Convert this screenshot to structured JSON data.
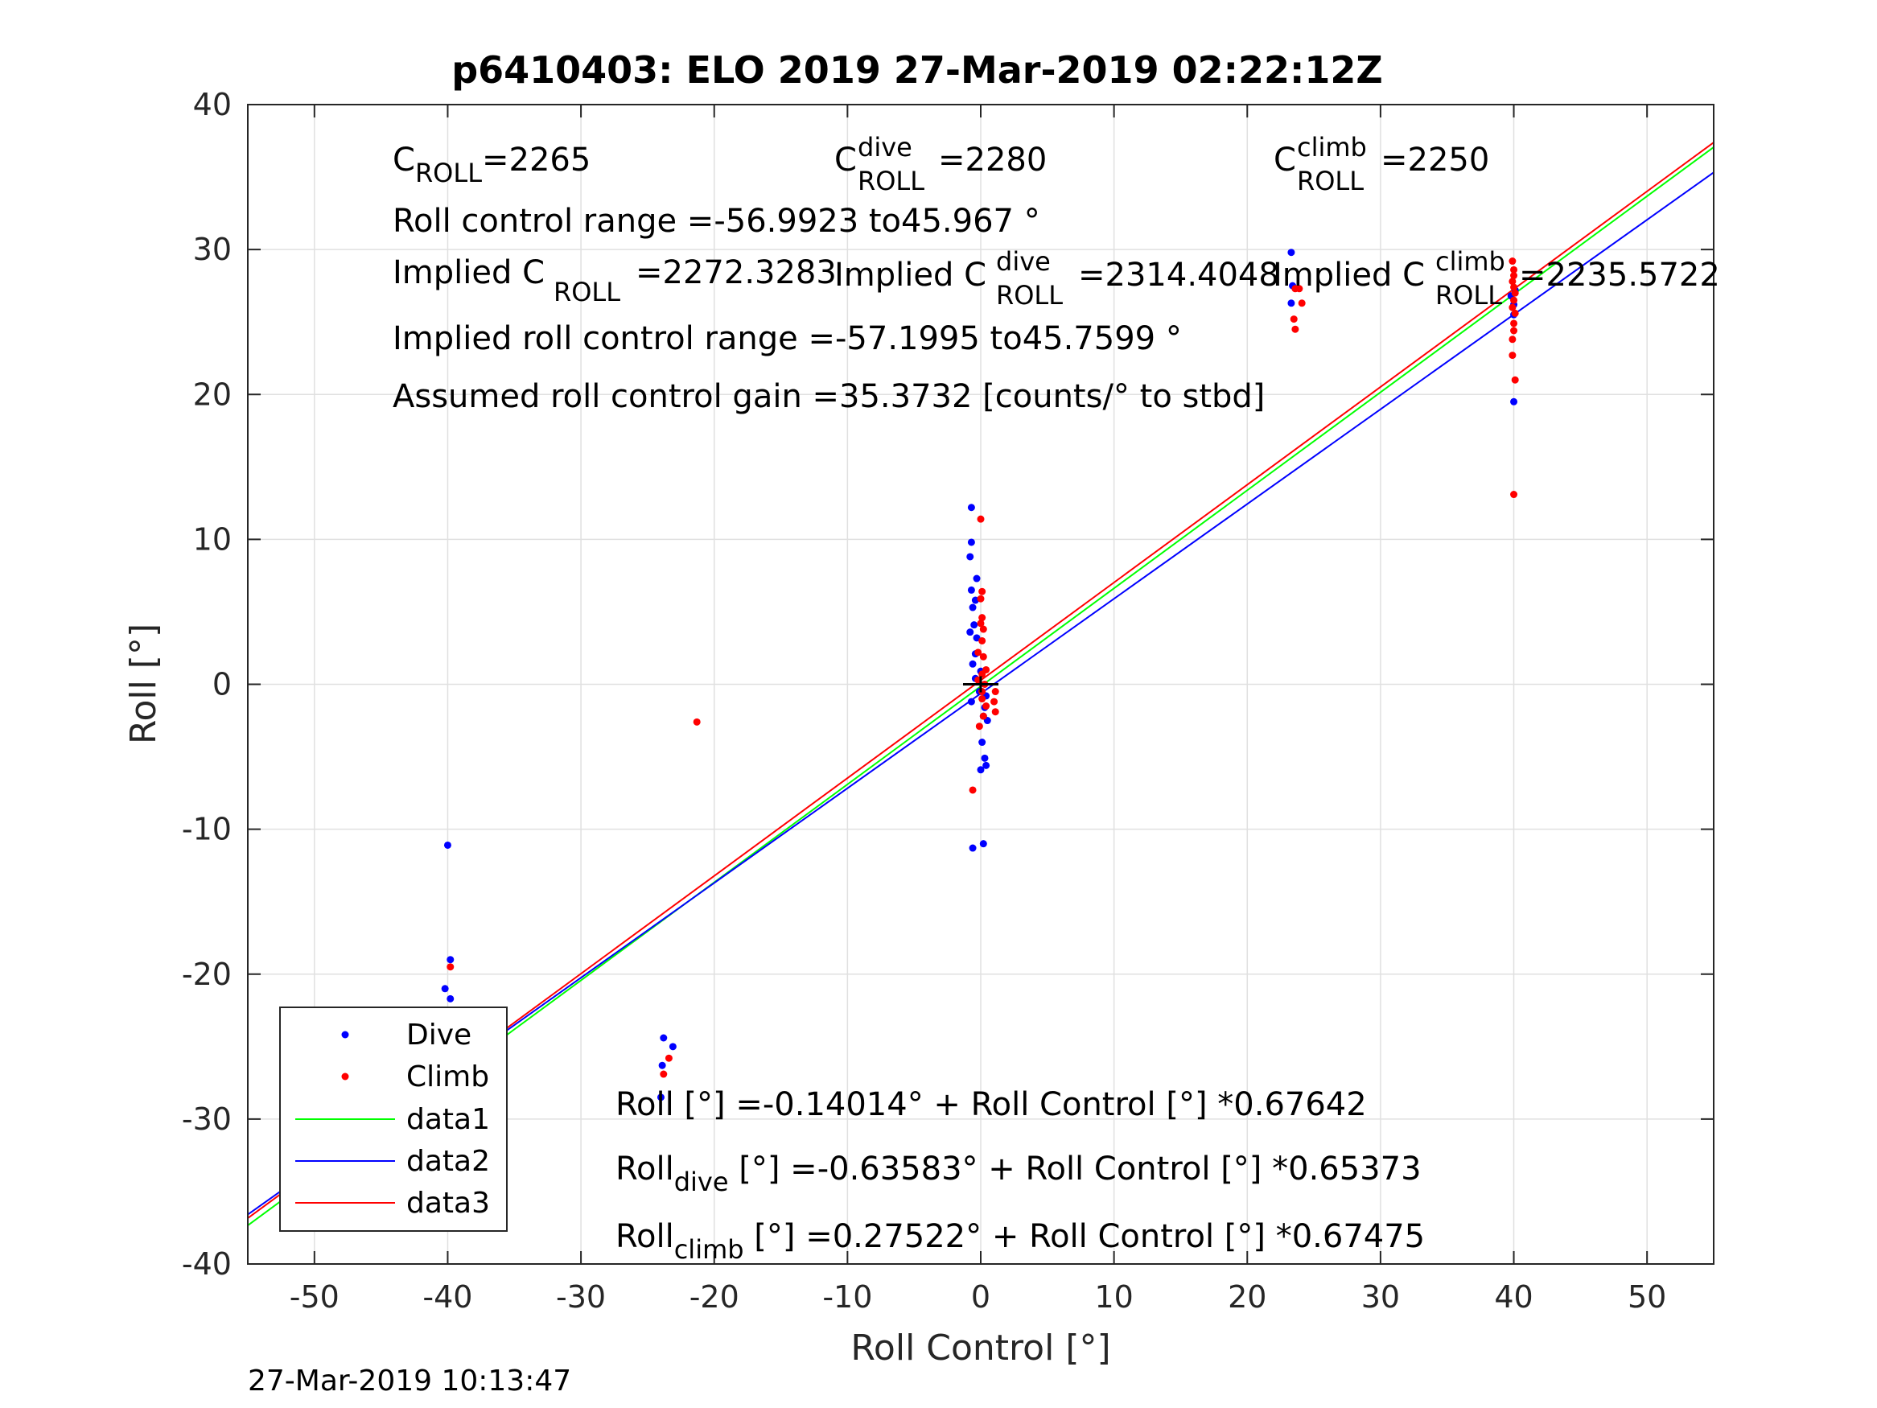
{
  "title": "p6410403: ELO 2019 27-Mar-2019 02:22:12Z",
  "footer_timestamp": "27-Mar-2019 10:13:47",
  "colors": {
    "dive": "#0000ff",
    "climb": "#ff0000",
    "data1": "#00ff00",
    "data2": "#0000ff",
    "data3": "#ff0000"
  },
  "annotations": {
    "c_roll": {
      "base": "C",
      "sub": "ROLL",
      "value": "=2265"
    },
    "c_roll_dive": {
      "base": "C",
      "sup": "dive",
      "sub": "ROLL",
      "value": "=2280"
    },
    "c_roll_climb": {
      "base": "C",
      "sup": "climb",
      "sub": "ROLL",
      "value": "=2250"
    },
    "roll_control_range": "Roll control range =-56.9923 to45.967 °",
    "implied_c_roll": {
      "prefix": "Implied C",
      "sub": "ROLL",
      "value": "=2272.3283"
    },
    "implied_c_roll_dive": {
      "prefix": "Implied C",
      "sup": "dive",
      "sub": "ROLL",
      "value": "=2314.4048"
    },
    "implied_c_roll_climb": {
      "prefix": "Implied C",
      "sup": "climb",
      "sub": "ROLL",
      "value": "=2235.5722"
    },
    "implied_range": "Implied roll control range =-57.1995 to45.7599 °",
    "gain": "Assumed roll control gain =35.3732 [counts/° to stbd]",
    "fit_all": "Roll [°] =-0.14014° + Roll Control [°] *0.67642",
    "fit_dive": {
      "base": "Roll",
      "sub": "dive",
      "rest": " [°] =-0.63583° + Roll Control [°] *0.65373"
    },
    "fit_climb": {
      "base": "Roll",
      "sub": "climb",
      "rest": " [°] =0.27522° + Roll Control [°] *0.67475"
    }
  },
  "chart_data": {
    "type": "scatter",
    "title": "p6410403: ELO 2019 27-Mar-2019 02:22:12Z",
    "xlabel": "Roll Control [°]",
    "ylabel": "Roll [°]",
    "xlim": [
      -55,
      55
    ],
    "ylim": [
      -40,
      40
    ],
    "xticks": [
      -50,
      -40,
      -30,
      -20,
      -10,
      0,
      10,
      20,
      30,
      40,
      50
    ],
    "yticks": [
      -40,
      -30,
      -20,
      -10,
      0,
      10,
      20,
      30,
      40
    ],
    "grid": true,
    "legend_position": "bottom-left",
    "series": [
      {
        "name": "Dive",
        "kind": "points",
        "points": [
          [
            -40,
            -11.1
          ],
          [
            -39.8,
            -19
          ],
          [
            -40.2,
            -21
          ],
          [
            -39.8,
            -21.7
          ],
          [
            -40,
            -23.2
          ],
          [
            -39.8,
            -24.2
          ],
          [
            -39.6,
            -25.5
          ],
          [
            -40.1,
            -26.2
          ],
          [
            -39.9,
            -27.1
          ],
          [
            -39.6,
            -27.8
          ],
          [
            -40.2,
            -28.3
          ],
          [
            -39.8,
            -28.8
          ],
          [
            -23.8,
            -24.4
          ],
          [
            -23.1,
            -25
          ],
          [
            -23.9,
            -26.3
          ],
          [
            -24,
            -28.5
          ],
          [
            -0.7,
            12.2
          ],
          [
            -0.7,
            9.8
          ],
          [
            -0.8,
            8.8
          ],
          [
            -0.3,
            7.3
          ],
          [
            -0.7,
            6.5
          ],
          [
            -0.4,
            5.8
          ],
          [
            -0.6,
            5.3
          ],
          [
            -0.5,
            4.1
          ],
          [
            -0.8,
            3.6
          ],
          [
            -0.3,
            3.2
          ],
          [
            -0.4,
            2.1
          ],
          [
            -0.6,
            1.4
          ],
          [
            -0.4,
            0.4
          ],
          [
            -0.1,
            -0.5
          ],
          [
            -0.7,
            -1.2
          ],
          [
            0.2,
            -2.2
          ],
          [
            0.5,
            -2.5
          ],
          [
            0.1,
            -4
          ],
          [
            0.3,
            -5.1
          ],
          [
            0.4,
            -5.6
          ],
          [
            0,
            -5.9
          ],
          [
            0.2,
            -11
          ],
          [
            -0.6,
            -11.3
          ],
          [
            0.3,
            -1.6
          ],
          [
            0.4,
            -0.8
          ],
          [
            0,
            0.9
          ],
          [
            23.3,
            29.8
          ],
          [
            23.4,
            27.5
          ],
          [
            23.3,
            26.3
          ],
          [
            40,
            19.5
          ],
          [
            40,
            25.5
          ],
          [
            40,
            26.2
          ],
          [
            39.8,
            26.8
          ],
          [
            40.1,
            27.2
          ]
        ]
      },
      {
        "name": "Climb",
        "kind": "points",
        "points": [
          [
            -39.8,
            -19.5
          ],
          [
            -39.6,
            -23.8
          ],
          [
            -39.7,
            -24.5
          ],
          [
            -39.9,
            -25.1
          ],
          [
            -40,
            -26.6
          ],
          [
            -39.8,
            -27.3
          ],
          [
            -39.9,
            -27.9
          ],
          [
            -40,
            -28.4
          ],
          [
            -39.7,
            -29
          ],
          [
            -39.8,
            -30.6
          ],
          [
            -21.3,
            -2.6
          ],
          [
            -23.8,
            -26.9
          ],
          [
            -23.4,
            -25.8
          ],
          [
            -0.6,
            -7.3
          ],
          [
            0,
            11.4
          ],
          [
            0.1,
            6.4
          ],
          [
            0,
            5.9
          ],
          [
            0.1,
            4.6
          ],
          [
            0,
            4.2
          ],
          [
            0.2,
            3.8
          ],
          [
            0.1,
            3
          ],
          [
            -0.2,
            2.2
          ],
          [
            0.2,
            1.9
          ],
          [
            0.4,
            1
          ],
          [
            0.1,
            0.7
          ],
          [
            -0.2,
            0.3
          ],
          [
            0.3,
            0
          ],
          [
            0.1,
            -0.5
          ],
          [
            0.1,
            -1
          ],
          [
            1,
            -1.2
          ],
          [
            1.1,
            -1.9
          ],
          [
            1.1,
            -0.5
          ],
          [
            0.4,
            -1.5
          ],
          [
            0.2,
            -2.2
          ],
          [
            -0.1,
            -2.9
          ],
          [
            23.6,
            27.3
          ],
          [
            23.5,
            25.2
          ],
          [
            23.6,
            24.5
          ],
          [
            24.1,
            26.3
          ],
          [
            23.9,
            27.3
          ],
          [
            39.9,
            29.2
          ],
          [
            40,
            28.6
          ],
          [
            40,
            28.2
          ],
          [
            39.9,
            27.8
          ],
          [
            40,
            27.4
          ],
          [
            40.1,
            27
          ],
          [
            40,
            26.5
          ],
          [
            39.9,
            26
          ],
          [
            40.1,
            25.6
          ],
          [
            40,
            24.9
          ],
          [
            40,
            24.4
          ],
          [
            39.9,
            23.8
          ],
          [
            39.9,
            22.7
          ],
          [
            40.1,
            21
          ],
          [
            40,
            13.1
          ]
        ]
      },
      {
        "name": "data1",
        "kind": "line",
        "points": [
          [
            -55,
            -37.34
          ],
          [
            55,
            37.06
          ]
        ]
      },
      {
        "name": "data2",
        "kind": "line",
        "points": [
          [
            -55,
            -36.59
          ],
          [
            55,
            35.32
          ]
        ]
      },
      {
        "name": "data3",
        "kind": "line",
        "points": [
          [
            -55,
            -36.84
          ],
          [
            55,
            37.39
          ]
        ]
      }
    ]
  }
}
